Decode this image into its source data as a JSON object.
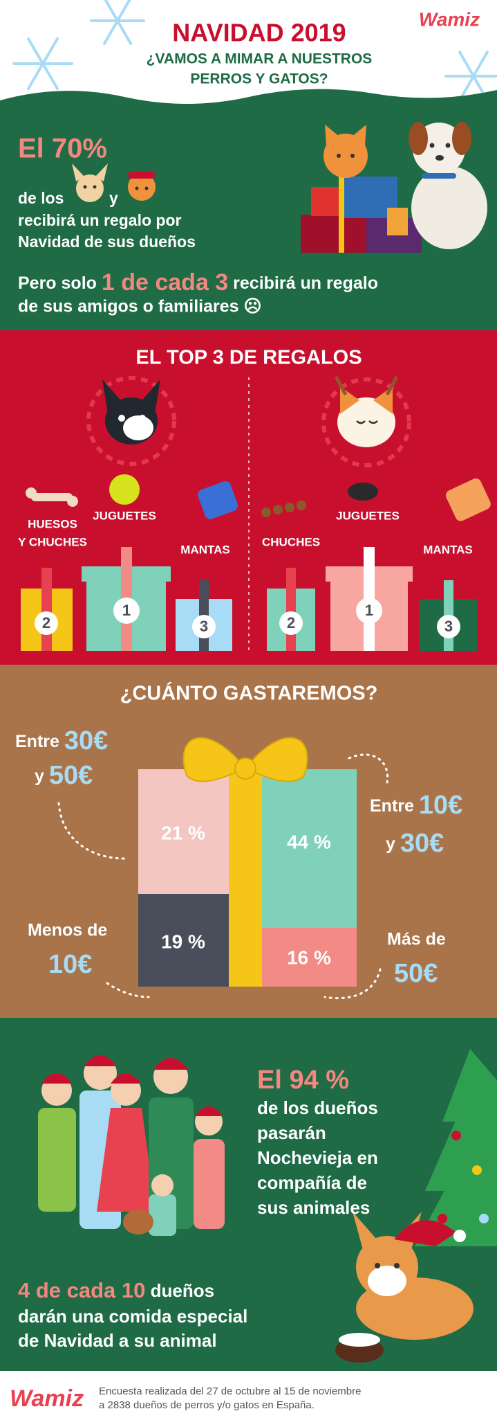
{
  "header": {
    "title": "NAVIDAD 2019",
    "subtitle_lines": [
      "¿VAMOS A MIMAR A NUESTROS",
      "PERROS Y GATOS?"
    ],
    "logo": "Wamiz"
  },
  "owners_gift": {
    "stat": "El 70%",
    "line1_start": "de los",
    "line1_and": "y",
    "lines": [
      "recibirá un regalo por",
      "Navidad de sus dueños"
    ],
    "friends": {
      "prefix": "Pero solo",
      "highlight": "1 de cada 3",
      "suffix": "recibirá un regalo",
      "line2": "de sus amigos o familiares ☹"
    }
  },
  "top3": {
    "title": "EL TOP 3 DE REGALOS",
    "dogs": [
      {
        "rank": "2",
        "label_lines": [
          "HUESOS",
          "Y CHUCHES"
        ]
      },
      {
        "rank": "1",
        "label_lines": [
          "JUGUETES"
        ]
      },
      {
        "rank": "3",
        "label_lines": [
          "MANTAS"
        ]
      }
    ],
    "cats": [
      {
        "rank": "2",
        "label_lines": [
          "CHUCHES"
        ]
      },
      {
        "rank": "1",
        "label_lines": [
          "JUGUETES"
        ]
      },
      {
        "rank": "3",
        "label_lines": [
          "MANTAS"
        ]
      }
    ]
  },
  "spending": {
    "title": "¿CUÁNTO GASTAREMOS?",
    "segments": [
      {
        "percent": "21 %",
        "range": [
          [
            "Entre",
            "30€"
          ],
          [
            "y",
            "50€"
          ]
        ]
      },
      {
        "percent": "44 %",
        "range": [
          [
            "Entre",
            "10€"
          ],
          [
            "y",
            "30€"
          ]
        ]
      },
      {
        "percent": "19 %",
        "range": [
          [
            "Menos de",
            ""
          ],
          [
            "",
            "10€"
          ]
        ]
      },
      {
        "percent": "16 %",
        "range": [
          [
            "Más de",
            ""
          ],
          [
            "",
            "50€"
          ]
        ]
      }
    ]
  },
  "new_year": {
    "stat": "El 94 %",
    "lines": [
      "de los dueños",
      "pasarán",
      "Nochevieja en",
      "compañía de",
      "sus animales"
    ],
    "meal": {
      "highlight": "4 de cada 10",
      "rest": "dueños",
      "lines": [
        "darán una comida especial",
        "de Navidad a su animal"
      ]
    }
  },
  "footer": {
    "logo": "Wamiz",
    "lines": [
      "Encuesta realizada del 27 de octubre al 15 de noviembre",
      "a 2838 dueños de perros y/o gatos en España."
    ]
  }
}
